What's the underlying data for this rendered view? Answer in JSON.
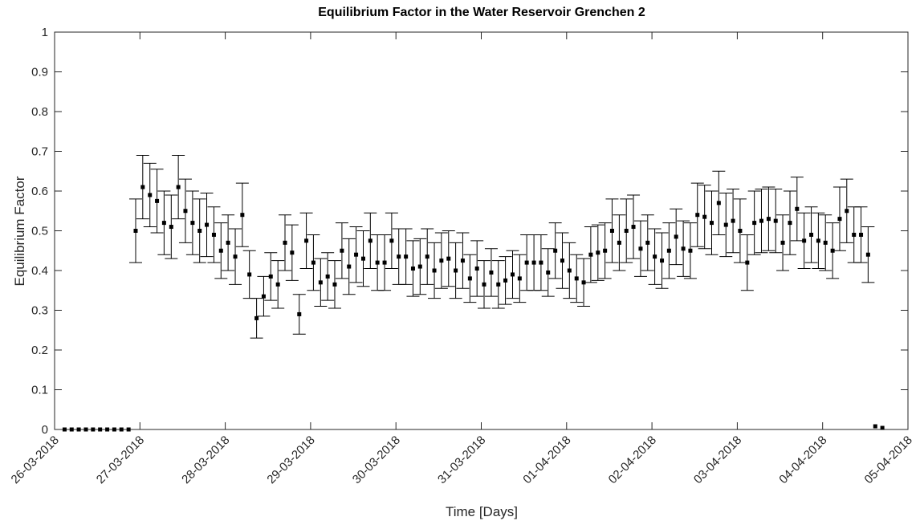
{
  "chart_data": {
    "type": "errorbar-scatter",
    "title": "Equilibrium Factor in the Water Reservoir Grenchen 2",
    "xlabel": "Time [Days]",
    "ylabel": "Equilibrium Factor",
    "xlim": [
      0,
      10
    ],
    "ylim": [
      0,
      1
    ],
    "xticks": [
      {
        "value": 0,
        "label": "26-03-2018"
      },
      {
        "value": 1,
        "label": "27-03-2018"
      },
      {
        "value": 2,
        "label": "28-03-2018"
      },
      {
        "value": 3,
        "label": "29-03-2018"
      },
      {
        "value": 4,
        "label": "30-03-2018"
      },
      {
        "value": 5,
        "label": "31-03-2018"
      },
      {
        "value": 6,
        "label": "01-04-2018"
      },
      {
        "value": 7,
        "label": "02-04-2018"
      },
      {
        "value": 8,
        "label": "03-04-2018"
      },
      {
        "value": 9,
        "label": "04-04-2018"
      },
      {
        "value": 10,
        "label": "05-04-2018"
      }
    ],
    "yticks": [
      0,
      0.1,
      0.2,
      0.3,
      0.4,
      0.5,
      0.6,
      0.7,
      0.8,
      0.9,
      1
    ],
    "grid": false,
    "series": [
      {
        "color": "#000000",
        "x": [
          0.117,
          0.2,
          0.283,
          0.367,
          0.45,
          0.533,
          0.617,
          0.7,
          0.783,
          0.867,
          0.95,
          1.033,
          1.117,
          1.2,
          1.283,
          1.367,
          1.45,
          1.533,
          1.617,
          1.7,
          1.783,
          1.867,
          1.95,
          2.033,
          2.117,
          2.2,
          2.283,
          2.367,
          2.45,
          2.533,
          2.617,
          2.7,
          2.783,
          2.867,
          2.95,
          3.033,
          3.117,
          3.2,
          3.283,
          3.367,
          3.45,
          3.533,
          3.617,
          3.7,
          3.783,
          3.867,
          3.95,
          4.033,
          4.117,
          4.2,
          4.283,
          4.367,
          4.45,
          4.533,
          4.617,
          4.7,
          4.783,
          4.867,
          4.95,
          5.033,
          5.117,
          5.2,
          5.283,
          5.367,
          5.45,
          5.533,
          5.617,
          5.7,
          5.783,
          5.867,
          5.95,
          6.033,
          6.117,
          6.2,
          6.283,
          6.367,
          6.45,
          6.533,
          6.617,
          6.7,
          6.783,
          6.867,
          6.95,
          7.033,
          7.117,
          7.2,
          7.283,
          7.367,
          7.45,
          7.533,
          7.617,
          7.7,
          7.783,
          7.867,
          7.95,
          8.033,
          8.117,
          8.2,
          8.283,
          8.367,
          8.45,
          8.533,
          8.617,
          8.7,
          8.783,
          8.867,
          8.95,
          9.033,
          9.117,
          9.2,
          9.283,
          9.367,
          9.45,
          9.533,
          9.617,
          9.7
        ],
        "values": [
          0,
          0,
          0,
          0,
          0,
          0,
          0,
          0,
          0,
          0,
          0.5,
          0.61,
          0.59,
          0.575,
          0.52,
          0.51,
          0.61,
          0.55,
          0.52,
          0.5,
          0.515,
          0.49,
          0.45,
          0.47,
          0.435,
          0.54,
          0.39,
          0.28,
          0.335,
          0.385,
          0.365,
          0.47,
          0.445,
          0.29,
          0.475,
          0.42,
          0.37,
          0.385,
          0.365,
          0.45,
          0.41,
          0.44,
          0.43,
          0.475,
          0.42,
          0.42,
          0.475,
          0.435,
          0.435,
          0.405,
          0.41,
          0.435,
          0.4,
          0.425,
          0.43,
          0.4,
          0.425,
          0.38,
          0.405,
          0.365,
          0.395,
          0.365,
          0.375,
          0.39,
          0.38,
          0.42,
          0.42,
          0.42,
          0.395,
          0.45,
          0.425,
          0.4,
          0.38,
          0.37,
          0.44,
          0.445,
          0.45,
          0.5,
          0.47,
          0.5,
          0.51,
          0.455,
          0.47,
          0.435,
          0.425,
          0.45,
          0.485,
          0.455,
          0.45,
          0.54,
          0.535,
          0.52,
          0.57,
          0.515,
          0.525,
          0.5,
          0.42,
          0.52,
          0.525,
          0.53,
          0.525,
          0.47,
          0.52,
          0.555,
          0.475,
          0.49,
          0.475,
          0.47,
          0.45,
          0.53,
          0.55,
          0.49,
          0.49,
          0.44,
          0.008,
          0.004
        ],
        "errors": [
          0,
          0,
          0,
          0,
          0,
          0,
          0,
          0,
          0,
          0,
          0.08,
          0.08,
          0.08,
          0.08,
          0.08,
          0.08,
          0.08,
          0.08,
          0.08,
          0.08,
          0.08,
          0.07,
          0.07,
          0.07,
          0.07,
          0.08,
          0.06,
          0.05,
          0.05,
          0.06,
          0.06,
          0.07,
          0.07,
          0.05,
          0.07,
          0.07,
          0.06,
          0.06,
          0.06,
          0.07,
          0.07,
          0.07,
          0.07,
          0.07,
          0.07,
          0.07,
          0.07,
          0.07,
          0.07,
          0.07,
          0.07,
          0.07,
          0.07,
          0.07,
          0.07,
          0.07,
          0.07,
          0.06,
          0.07,
          0.06,
          0.06,
          0.06,
          0.06,
          0.06,
          0.06,
          0.07,
          0.07,
          0.07,
          0.06,
          0.07,
          0.07,
          0.07,
          0.06,
          0.06,
          0.07,
          0.07,
          0.07,
          0.08,
          0.07,
          0.08,
          0.08,
          0.07,
          0.07,
          0.07,
          0.07,
          0.07,
          0.07,
          0.07,
          0.07,
          0.08,
          0.08,
          0.08,
          0.08,
          0.08,
          0.08,
          0.08,
          0.07,
          0.08,
          0.08,
          0.08,
          0.08,
          0.07,
          0.08,
          0.08,
          0.07,
          0.07,
          0.07,
          0.07,
          0.07,
          0.08,
          0.08,
          0.07,
          0.07,
          0.07,
          0,
          0
        ]
      }
    ]
  }
}
